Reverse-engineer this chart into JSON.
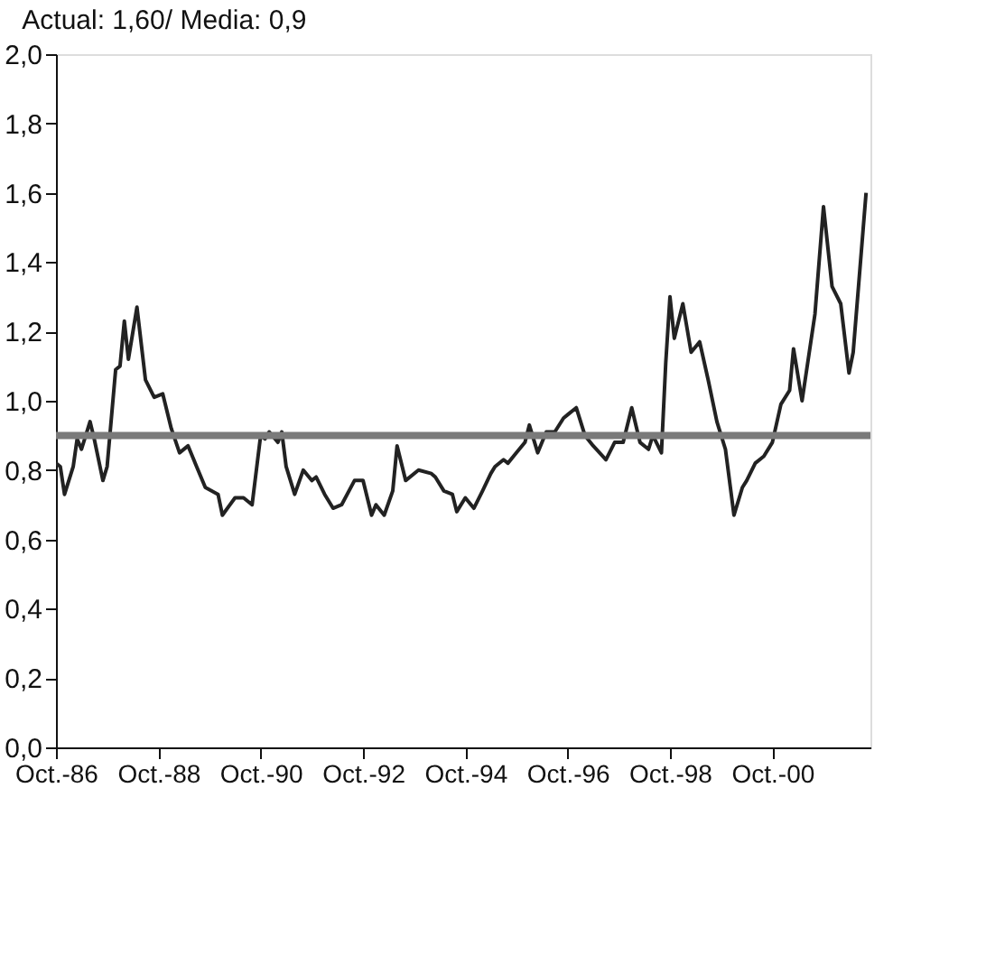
{
  "chart_data": {
    "type": "line",
    "title": "Actual: 1,60/ Media: 0,9",
    "x": [
      "1986-10",
      "1986-11",
      "1986-12",
      "1987-02",
      "1987-03",
      "1987-04",
      "1987-06",
      "1987-07",
      "1987-09",
      "1987-10",
      "1987-12",
      "1988-01",
      "1988-02",
      "1988-03",
      "1988-05",
      "1988-07",
      "1988-09",
      "1988-11",
      "1989-01",
      "1989-03",
      "1989-05",
      "1989-07",
      "1989-09",
      "1989-12",
      "1990-01",
      "1990-04",
      "1990-06",
      "1990-08",
      "1990-10",
      "1990-11",
      "1990-12",
      "1991-02",
      "1991-03",
      "1991-04",
      "1991-06",
      "1991-08",
      "1991-10",
      "1991-11",
      "1992-01",
      "1992-03",
      "1992-05",
      "1992-08",
      "1992-10",
      "1992-12",
      "1993-01",
      "1993-03",
      "1993-05",
      "1993-06",
      "1993-08",
      "1993-11",
      "1994-02",
      "1994-03",
      "1994-05",
      "1994-07",
      "1994-08",
      "1994-10",
      "1994-12",
      "1995-02",
      "1995-04",
      "1995-05",
      "1995-07",
      "1995-08",
      "1995-10",
      "1995-12",
      "1996-01",
      "1996-03",
      "1996-05",
      "1996-07",
      "1996-09",
      "1996-10",
      "1996-12",
      "1997-02",
      "1997-04",
      "1997-07",
      "1997-09",
      "1997-11",
      "1998-01",
      "1998-03",
      "1998-05",
      "1998-06",
      "1998-08",
      "1998-09",
      "1998-10",
      "1998-11",
      "1999-01",
      "1999-03",
      "1999-05",
      "1999-07",
      "1999-09",
      "1999-11",
      "2000-01",
      "2000-03",
      "2000-04",
      "2000-06",
      "2000-08",
      "2000-10",
      "2000-12",
      "2001-02",
      "2001-03",
      "2001-05",
      "2001-08",
      "2001-10",
      "2001-12",
      "2002-02",
      "2002-04",
      "2002-05",
      "2002-08"
    ],
    "series": [
      {
        "color": "#222222",
        "values": [
          0.82,
          0.81,
          0.73,
          0.81,
          0.89,
          0.86,
          0.94,
          0.89,
          0.77,
          0.81,
          1.09,
          1.1,
          1.23,
          1.12,
          1.27,
          1.06,
          1.01,
          1.02,
          0.92,
          0.85,
          0.87,
          0.81,
          0.75,
          0.73,
          0.67,
          0.72,
          0.72,
          0.7,
          0.9,
          0.89,
          0.91,
          0.88,
          0.91,
          0.81,
          0.73,
          0.8,
          0.77,
          0.78,
          0.73,
          0.69,
          0.7,
          0.77,
          0.77,
          0.67,
          0.7,
          0.67,
          0.74,
          0.87,
          0.77,
          0.8,
          0.79,
          0.78,
          0.74,
          0.73,
          0.68,
          0.72,
          0.69,
          0.74,
          0.79,
          0.81,
          0.83,
          0.82,
          0.85,
          0.88,
          0.93,
          0.85,
          0.91,
          0.91,
          0.95,
          0.96,
          0.98,
          0.9,
          0.87,
          0.83,
          0.88,
          0.88,
          0.98,
          0.88,
          0.86,
          0.9,
          0.85,
          1.11,
          1.3,
          1.18,
          1.28,
          1.14,
          1.17,
          1.06,
          0.94,
          0.86,
          0.67,
          0.75,
          0.77,
          0.82,
          0.84,
          0.88,
          0.99,
          1.03,
          1.15,
          1.0,
          1.25,
          1.56,
          1.33,
          1.28,
          1.08,
          1.14,
          1.6
        ]
      }
    ],
    "xlim": [
      "1986-10",
      "2002-09"
    ],
    "xticks": [
      {
        "value": "1986-10",
        "label": "Oct.-86"
      },
      {
        "value": "1988-10",
        "label": "Oct.-88"
      },
      {
        "value": "1990-10",
        "label": "Oct.-90"
      },
      {
        "value": "1992-10",
        "label": "Oct.-92"
      },
      {
        "value": "1994-10",
        "label": "Oct.-94"
      },
      {
        "value": "1996-10",
        "label": "Oct.-96"
      },
      {
        "value": "1998-10",
        "label": "Oct.-98"
      },
      {
        "value": "2000-10",
        "label": "Oct.-00"
      }
    ],
    "ylim": [
      0,
      2.0
    ],
    "yticks": [
      {
        "value": 0,
        "label": "0,0"
      },
      {
        "value": 0.2,
        "label": "0,2"
      },
      {
        "value": 0.4,
        "label": "0,4"
      },
      {
        "value": 0.6,
        "label": "0,6"
      },
      {
        "value": 0.8,
        "label": "0,8"
      },
      {
        "value": 1.0,
        "label": "1,0"
      },
      {
        "value": 1.2,
        "label": "1,2"
      },
      {
        "value": 1.4,
        "label": "1,4"
      },
      {
        "value": 1.6,
        "label": "1,6"
      },
      {
        "value": 1.8,
        "label": "1,8"
      },
      {
        "value": 2.0,
        "label": "2,0"
      }
    ],
    "ref_lines": [
      {
        "axis": "y",
        "value": 0.9,
        "color": "#7a7a7a"
      }
    ],
    "grid": false,
    "marker": "none",
    "line_style": "solid"
  }
}
